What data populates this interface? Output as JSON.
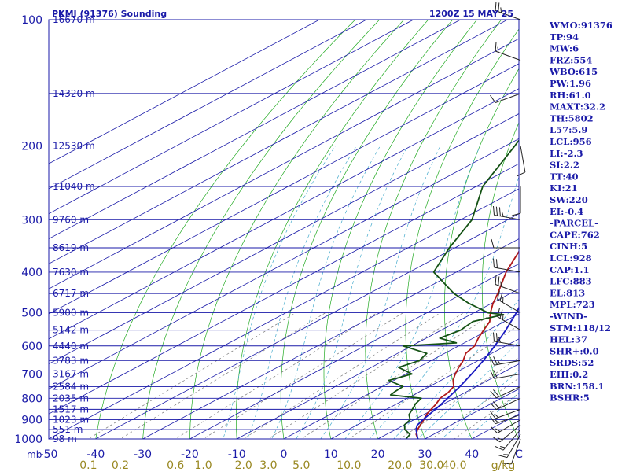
{
  "header": {
    "station": "PKMJ (91376) Sounding",
    "time": "1200Z 15 MAY 25"
  },
  "colors": {
    "frame": "#1a1aa8",
    "text": "#1a1aa8",
    "isotherm": "#1a1aa8",
    "dry_adiabat": "#22aa22",
    "moist_adiabat": "#44aacc",
    "mixing_ratio": "#777777",
    "temperature": "#b01818",
    "dewpoint": "#145214",
    "parcel": "#1818c0",
    "mixing_label": "#998822"
  },
  "chart_data": {
    "type": "line",
    "title": "PKMJ (91376) Sounding",
    "p_range": [
      1000,
      100
    ],
    "t_range": [
      -50,
      50
    ],
    "pressure_labels": [
      "100",
      "200",
      "300",
      "400",
      "500",
      "600",
      "700",
      "800",
      "900",
      "1000"
    ],
    "height_labels": [
      {
        "p": 100,
        "text": "16670 m"
      },
      {
        "p": 150,
        "text": "14320 m"
      },
      {
        "p": 200,
        "text": "12530 m"
      },
      {
        "p": 250,
        "text": "11040 m"
      },
      {
        "p": 300,
        "text": "9760 m"
      },
      {
        "p": 350,
        "text": "8619 m"
      },
      {
        "p": 400,
        "text": "7630 m"
      },
      {
        "p": 450,
        "text": "6717 m"
      },
      {
        "p": 500,
        "text": "5900 m"
      },
      {
        "p": 550,
        "text": "5142 m"
      },
      {
        "p": 600,
        "text": "4440 m"
      },
      {
        "p": 650,
        "text": "3783 m"
      },
      {
        "p": 700,
        "text": "3167 m"
      },
      {
        "p": 750,
        "text": "2584 m"
      },
      {
        "p": 800,
        "text": "2035 m"
      },
      {
        "p": 850,
        "text": "1517 m"
      },
      {
        "p": 900,
        "text": "1023 m"
      },
      {
        "p": 950,
        "text": "551 m"
      },
      {
        "p": 1000,
        "text": "98 m"
      }
    ],
    "x_ticks": [
      "-50",
      "-40",
      "-30",
      "-20",
      "-10",
      "0",
      "10",
      "20",
      "30",
      "40",
      "C"
    ],
    "x_unit_left": "mb",
    "mixing_ticks": [
      "0.1",
      "0.2",
      "0.6",
      "1.0",
      "2.0",
      "3.0",
      "5.0",
      "10.0",
      "20.0",
      "30.0",
      "40.0",
      "g/kg"
    ],
    "series": [
      {
        "key": "temperature",
        "points": [
          [
            1000,
            28.5
          ],
          [
            975,
            26.3
          ],
          [
            950,
            24.7
          ],
          [
            925,
            23.4
          ],
          [
            900,
            22.1
          ],
          [
            875,
            20.6
          ],
          [
            850,
            19.5
          ],
          [
            825,
            18.4
          ],
          [
            800,
            17.0
          ],
          [
            775,
            16.4
          ],
          [
            750,
            15.2
          ],
          [
            725,
            12.6
          ],
          [
            700,
            10.5
          ],
          [
            675,
            8.6
          ],
          [
            650,
            6.8
          ],
          [
            625,
            4.5
          ],
          [
            600,
            3.4
          ],
          [
            575,
            1.1
          ],
          [
            550,
            -1.0
          ],
          [
            525,
            -3.1
          ],
          [
            500,
            -6.5
          ],
          [
            475,
            -9.7
          ],
          [
            450,
            -12.6
          ],
          [
            425,
            -15.9
          ],
          [
            400,
            -19.4
          ],
          [
            350,
            -25.9
          ],
          [
            300,
            -34.2
          ],
          [
            250,
            -43.8
          ],
          [
            200,
            -53.9
          ],
          [
            150,
            -66.3
          ],
          [
            125,
            -75.2
          ],
          [
            100,
            -83.9
          ]
        ]
      },
      {
        "key": "dewpoint",
        "points": [
          [
            1000,
            26.0
          ],
          [
            975,
            25.0
          ],
          [
            950,
            22.0
          ],
          [
            925,
            20.0
          ],
          [
            900,
            19.2
          ],
          [
            875,
            16.9
          ],
          [
            850,
            15.5
          ],
          [
            825,
            14.0
          ],
          [
            800,
            13.0
          ],
          [
            785,
            5.1
          ],
          [
            770,
            4.7
          ],
          [
            750,
            4.4
          ],
          [
            725,
            -1.1
          ],
          [
            700,
            1.3
          ],
          [
            675,
            -4.2
          ],
          [
            650,
            -2.5
          ],
          [
            625,
            -3.8
          ],
          [
            600,
            -11.8
          ],
          [
            590,
            -1.7
          ],
          [
            575,
            -7.1
          ],
          [
            550,
            -5.9
          ],
          [
            525,
            -6.7
          ],
          [
            505,
            -3.0
          ],
          [
            500,
            -7.0
          ],
          [
            475,
            -14.8
          ],
          [
            450,
            -21.9
          ],
          [
            400,
            -34.8
          ],
          [
            350,
            -41.2
          ],
          [
            300,
            -47.6
          ],
          [
            250,
            -58.6
          ],
          [
            200,
            -68.0
          ],
          [
            150,
            -80.7
          ],
          [
            100,
            -94.5
          ]
        ]
      },
      {
        "key": "parcel",
        "points": [
          [
            1000,
            28.5
          ],
          [
            950,
            24.4
          ],
          [
            928,
            22.9
          ],
          [
            900,
            21.9
          ],
          [
            850,
            20.4
          ],
          [
            800,
            18.6
          ],
          [
            750,
            16.5
          ],
          [
            700,
            14.0
          ],
          [
            650,
            11.1
          ],
          [
            600,
            7.7
          ],
          [
            550,
            3.7
          ],
          [
            500,
            -1.0
          ],
          [
            450,
            -6.6
          ],
          [
            400,
            -13.2
          ],
          [
            350,
            -21.4
          ],
          [
            300,
            -31.0
          ],
          [
            250,
            -42.3
          ],
          [
            200,
            -55.0
          ],
          [
            150,
            -67.8
          ],
          [
            125,
            -75.8
          ],
          [
            100,
            -84.7
          ]
        ]
      }
    ],
    "wind_barbs": [
      {
        "p": 1000,
        "dir": 200,
        "spd": 10
      },
      {
        "p": 975,
        "dir": 210,
        "spd": 15
      },
      {
        "p": 950,
        "dir": 220,
        "spd": 15
      },
      {
        "p": 925,
        "dir": 230,
        "spd": 15
      },
      {
        "p": 900,
        "dir": 240,
        "spd": 15
      },
      {
        "p": 875,
        "dir": 250,
        "spd": 15
      },
      {
        "p": 850,
        "dir": 250,
        "spd": 15
      },
      {
        "p": 800,
        "dir": 245,
        "spd": 20
      },
      {
        "p": 750,
        "dir": 245,
        "spd": 20
      },
      {
        "p": 700,
        "dir": 260,
        "spd": 20
      },
      {
        "p": 650,
        "dir": 260,
        "spd": 25
      },
      {
        "p": 600,
        "dir": 280,
        "spd": 25
      },
      {
        "p": 550,
        "dir": 300,
        "spd": 25
      },
      {
        "p": 500,
        "dir": 300,
        "spd": 25
      },
      {
        "p": 450,
        "dir": 290,
        "spd": 25
      },
      {
        "p": 400,
        "dir": 280,
        "spd": 20
      },
      {
        "p": 350,
        "dir": 270,
        "spd": 10
      },
      {
        "p": 300,
        "dir": 280,
        "spd": 35
      },
      {
        "p": 250,
        "dir": 180,
        "spd": 10
      },
      {
        "p": 200,
        "dir": 170,
        "spd": 10
      },
      {
        "p": 150,
        "dir": 250,
        "spd": 10
      },
      {
        "p": 125,
        "dir": 290,
        "spd": 15
      },
      {
        "p": 100,
        "dir": 290,
        "spd": 25
      }
    ]
  },
  "indices": [
    "WMO:91376",
    "TP:94",
    "MW:6",
    "FRZ:554",
    "WBO:615",
    "PW:1.96",
    "RH:61.0",
    "MAXT:32.2",
    "TH:5802",
    "L57:5.9",
    "LCL:956",
    "LI:-2.3",
    "SI:2.2",
    "TT:40",
    "KI:21",
    "SW:220",
    "EI:-0.4",
    "-PARCEL-",
    "CAPE:762",
    "CINH:5",
    "LCL:928",
    "CAP:1.1",
    "LFC:883",
    "EL:813",
    "MPL:723",
    "-WIND-",
    "STM:118/12",
    "HEL:37",
    "SHR+:0.0",
    "SRDS:52",
    "EHI:0.2",
    "BRN:158.1",
    "BSHR:5"
  ]
}
